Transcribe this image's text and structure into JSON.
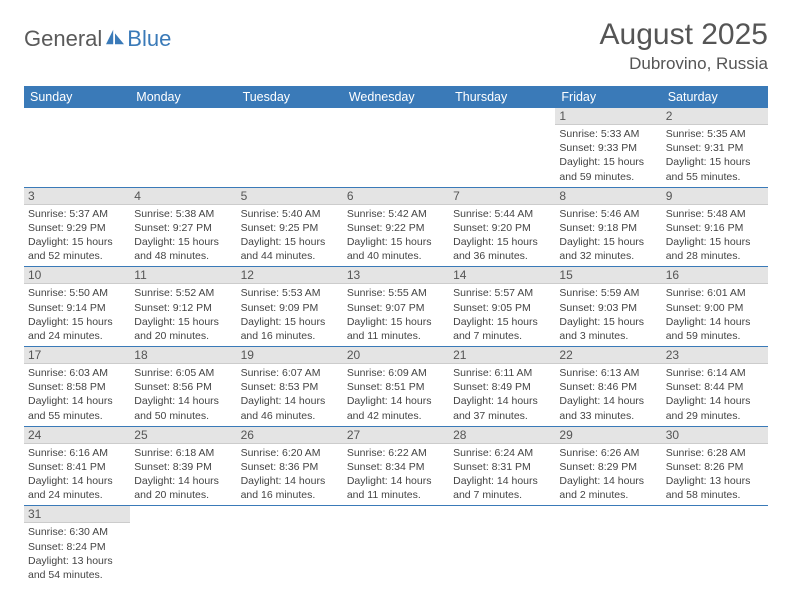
{
  "logo": {
    "text1": "General",
    "text2": "Blue"
  },
  "title": "August 2025",
  "location": "Dubrovino, Russia",
  "colors": {
    "header_bg": "#3a7ab8",
    "daynum_bg": "#e4e4e4",
    "text": "#555555"
  },
  "weekdays": [
    "Sunday",
    "Monday",
    "Tuesday",
    "Wednesday",
    "Thursday",
    "Friday",
    "Saturday"
  ],
  "weeks": [
    [
      null,
      null,
      null,
      null,
      null,
      {
        "n": "1",
        "sr": "Sunrise: 5:33 AM",
        "ss": "Sunset: 9:33 PM",
        "d1": "Daylight: 15 hours",
        "d2": "and 59 minutes."
      },
      {
        "n": "2",
        "sr": "Sunrise: 5:35 AM",
        "ss": "Sunset: 9:31 PM",
        "d1": "Daylight: 15 hours",
        "d2": "and 55 minutes."
      }
    ],
    [
      {
        "n": "3",
        "sr": "Sunrise: 5:37 AM",
        "ss": "Sunset: 9:29 PM",
        "d1": "Daylight: 15 hours",
        "d2": "and 52 minutes."
      },
      {
        "n": "4",
        "sr": "Sunrise: 5:38 AM",
        "ss": "Sunset: 9:27 PM",
        "d1": "Daylight: 15 hours",
        "d2": "and 48 minutes."
      },
      {
        "n": "5",
        "sr": "Sunrise: 5:40 AM",
        "ss": "Sunset: 9:25 PM",
        "d1": "Daylight: 15 hours",
        "d2": "and 44 minutes."
      },
      {
        "n": "6",
        "sr": "Sunrise: 5:42 AM",
        "ss": "Sunset: 9:22 PM",
        "d1": "Daylight: 15 hours",
        "d2": "and 40 minutes."
      },
      {
        "n": "7",
        "sr": "Sunrise: 5:44 AM",
        "ss": "Sunset: 9:20 PM",
        "d1": "Daylight: 15 hours",
        "d2": "and 36 minutes."
      },
      {
        "n": "8",
        "sr": "Sunrise: 5:46 AM",
        "ss": "Sunset: 9:18 PM",
        "d1": "Daylight: 15 hours",
        "d2": "and 32 minutes."
      },
      {
        "n": "9",
        "sr": "Sunrise: 5:48 AM",
        "ss": "Sunset: 9:16 PM",
        "d1": "Daylight: 15 hours",
        "d2": "and 28 minutes."
      }
    ],
    [
      {
        "n": "10",
        "sr": "Sunrise: 5:50 AM",
        "ss": "Sunset: 9:14 PM",
        "d1": "Daylight: 15 hours",
        "d2": "and 24 minutes."
      },
      {
        "n": "11",
        "sr": "Sunrise: 5:52 AM",
        "ss": "Sunset: 9:12 PM",
        "d1": "Daylight: 15 hours",
        "d2": "and 20 minutes."
      },
      {
        "n": "12",
        "sr": "Sunrise: 5:53 AM",
        "ss": "Sunset: 9:09 PM",
        "d1": "Daylight: 15 hours",
        "d2": "and 16 minutes."
      },
      {
        "n": "13",
        "sr": "Sunrise: 5:55 AM",
        "ss": "Sunset: 9:07 PM",
        "d1": "Daylight: 15 hours",
        "d2": "and 11 minutes."
      },
      {
        "n": "14",
        "sr": "Sunrise: 5:57 AM",
        "ss": "Sunset: 9:05 PM",
        "d1": "Daylight: 15 hours",
        "d2": "and 7 minutes."
      },
      {
        "n": "15",
        "sr": "Sunrise: 5:59 AM",
        "ss": "Sunset: 9:03 PM",
        "d1": "Daylight: 15 hours",
        "d2": "and 3 minutes."
      },
      {
        "n": "16",
        "sr": "Sunrise: 6:01 AM",
        "ss": "Sunset: 9:00 PM",
        "d1": "Daylight: 14 hours",
        "d2": "and 59 minutes."
      }
    ],
    [
      {
        "n": "17",
        "sr": "Sunrise: 6:03 AM",
        "ss": "Sunset: 8:58 PM",
        "d1": "Daylight: 14 hours",
        "d2": "and 55 minutes."
      },
      {
        "n": "18",
        "sr": "Sunrise: 6:05 AM",
        "ss": "Sunset: 8:56 PM",
        "d1": "Daylight: 14 hours",
        "d2": "and 50 minutes."
      },
      {
        "n": "19",
        "sr": "Sunrise: 6:07 AM",
        "ss": "Sunset: 8:53 PM",
        "d1": "Daylight: 14 hours",
        "d2": "and 46 minutes."
      },
      {
        "n": "20",
        "sr": "Sunrise: 6:09 AM",
        "ss": "Sunset: 8:51 PM",
        "d1": "Daylight: 14 hours",
        "d2": "and 42 minutes."
      },
      {
        "n": "21",
        "sr": "Sunrise: 6:11 AM",
        "ss": "Sunset: 8:49 PM",
        "d1": "Daylight: 14 hours",
        "d2": "and 37 minutes."
      },
      {
        "n": "22",
        "sr": "Sunrise: 6:13 AM",
        "ss": "Sunset: 8:46 PM",
        "d1": "Daylight: 14 hours",
        "d2": "and 33 minutes."
      },
      {
        "n": "23",
        "sr": "Sunrise: 6:14 AM",
        "ss": "Sunset: 8:44 PM",
        "d1": "Daylight: 14 hours",
        "d2": "and 29 minutes."
      }
    ],
    [
      {
        "n": "24",
        "sr": "Sunrise: 6:16 AM",
        "ss": "Sunset: 8:41 PM",
        "d1": "Daylight: 14 hours",
        "d2": "and 24 minutes."
      },
      {
        "n": "25",
        "sr": "Sunrise: 6:18 AM",
        "ss": "Sunset: 8:39 PM",
        "d1": "Daylight: 14 hours",
        "d2": "and 20 minutes."
      },
      {
        "n": "26",
        "sr": "Sunrise: 6:20 AM",
        "ss": "Sunset: 8:36 PM",
        "d1": "Daylight: 14 hours",
        "d2": "and 16 minutes."
      },
      {
        "n": "27",
        "sr": "Sunrise: 6:22 AM",
        "ss": "Sunset: 8:34 PM",
        "d1": "Daylight: 14 hours",
        "d2": "and 11 minutes."
      },
      {
        "n": "28",
        "sr": "Sunrise: 6:24 AM",
        "ss": "Sunset: 8:31 PM",
        "d1": "Daylight: 14 hours",
        "d2": "and 7 minutes."
      },
      {
        "n": "29",
        "sr": "Sunrise: 6:26 AM",
        "ss": "Sunset: 8:29 PM",
        "d1": "Daylight: 14 hours",
        "d2": "and 2 minutes."
      },
      {
        "n": "30",
        "sr": "Sunrise: 6:28 AM",
        "ss": "Sunset: 8:26 PM",
        "d1": "Daylight: 13 hours",
        "d2": "and 58 minutes."
      }
    ],
    [
      {
        "n": "31",
        "sr": "Sunrise: 6:30 AM",
        "ss": "Sunset: 8:24 PM",
        "d1": "Daylight: 13 hours",
        "d2": "and 54 minutes."
      },
      null,
      null,
      null,
      null,
      null,
      null
    ]
  ]
}
